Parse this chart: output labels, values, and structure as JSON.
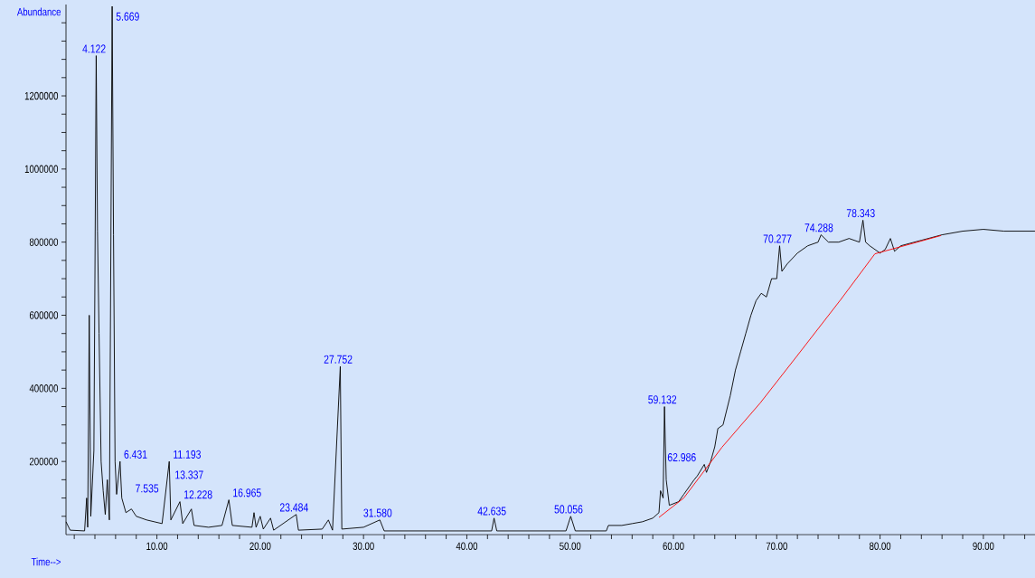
{
  "chart_data": {
    "type": "line",
    "xlabel": "Time-->",
    "ylabel": "Abundance",
    "xlim": [
      1.2,
      95
    ],
    "ylim": [
      0,
      1450000
    ],
    "xticks": [
      {
        "value": 2,
        "label": null
      },
      {
        "value": 4,
        "label": null
      },
      {
        "value": 6,
        "label": null
      },
      {
        "value": 8,
        "label": null
      },
      {
        "value": 10,
        "label": "10.00"
      },
      {
        "value": 12,
        "label": null
      },
      {
        "value": 14,
        "label": null
      },
      {
        "value": 16,
        "label": null
      },
      {
        "value": 18,
        "label": null
      },
      {
        "value": 20,
        "label": "20.00"
      },
      {
        "value": 22,
        "label": null
      },
      {
        "value": 24,
        "label": null
      },
      {
        "value": 26,
        "label": null
      },
      {
        "value": 28,
        "label": null
      },
      {
        "value": 30,
        "label": "30.00"
      },
      {
        "value": 32,
        "label": null
      },
      {
        "value": 34,
        "label": null
      },
      {
        "value": 36,
        "label": null
      },
      {
        "value": 38,
        "label": null
      },
      {
        "value": 40,
        "label": "40.00"
      },
      {
        "value": 42,
        "label": null
      },
      {
        "value": 44,
        "label": null
      },
      {
        "value": 46,
        "label": null
      },
      {
        "value": 48,
        "label": null
      },
      {
        "value": 50,
        "label": "50.00"
      },
      {
        "value": 52,
        "label": null
      },
      {
        "value": 54,
        "label": null
      },
      {
        "value": 56,
        "label": null
      },
      {
        "value": 58,
        "label": null
      },
      {
        "value": 60,
        "label": "60.00"
      },
      {
        "value": 62,
        "label": null
      },
      {
        "value": 64,
        "label": null
      },
      {
        "value": 66,
        "label": null
      },
      {
        "value": 68,
        "label": null
      },
      {
        "value": 70,
        "label": "70.00"
      },
      {
        "value": 72,
        "label": null
      },
      {
        "value": 74,
        "label": null
      },
      {
        "value": 76,
        "label": null
      },
      {
        "value": 78,
        "label": null
      },
      {
        "value": 80,
        "label": "80.00"
      },
      {
        "value": 82,
        "label": null
      },
      {
        "value": 84,
        "label": null
      },
      {
        "value": 86,
        "label": null
      },
      {
        "value": 88,
        "label": null
      },
      {
        "value": 90,
        "label": "90.00"
      },
      {
        "value": 92,
        "label": null
      },
      {
        "value": 94,
        "label": null
      }
    ],
    "yticks": [
      {
        "value": 50000,
        "label": null
      },
      {
        "value": 100000,
        "label": null
      },
      {
        "value": 150000,
        "label": null
      },
      200000,
      {
        "value": 250000,
        "label": null
      },
      {
        "value": 300000,
        "label": null
      },
      {
        "value": 350000,
        "label": null
      },
      400000,
      {
        "value": 450000,
        "label": null
      },
      {
        "value": 500000,
        "label": null
      },
      {
        "value": 550000,
        "label": null
      },
      600000,
      {
        "value": 650000,
        "label": null
      },
      {
        "value": 700000,
        "label": null
      },
      {
        "value": 750000,
        "label": null
      },
      800000,
      {
        "value": 850000,
        "label": null
      },
      {
        "value": 900000,
        "label": null
      },
      {
        "value": 950000,
        "label": null
      },
      1000000,
      {
        "value": 1050000,
        "label": null
      },
      {
        "value": 1100000,
        "label": null
      },
      {
        "value": 1150000,
        "label": null
      },
      1200000,
      {
        "value": 1250000,
        "label": null
      },
      {
        "value": 1300000,
        "label": null
      },
      {
        "value": 1350000,
        "label": null
      },
      {
        "value": 1400000,
        "label": null
      }
    ],
    "series": [
      {
        "type": "line",
        "color": "#000000",
        "x": [
          1.2,
          1.6,
          3.0,
          3.2,
          3.3,
          3.45,
          3.6,
          3.9,
          4.0,
          4.122,
          4.25,
          4.4,
          4.6,
          4.8,
          5.0,
          5.2,
          5.4,
          5.669,
          5.8,
          5.95,
          6.1,
          6.431,
          6.6,
          7.0,
          7.535,
          8.0,
          9.0,
          10.5,
          11.193,
          11.35,
          12.228,
          12.5,
          13.337,
          13.6,
          15,
          16.3,
          16.965,
          17.3,
          19.2,
          19.4,
          19.6,
          20,
          20.3,
          21,
          21.3,
          23.484,
          23.7,
          26,
          26.6,
          27,
          27.752,
          27.9,
          30,
          31.58,
          32,
          35,
          42.4,
          42.635,
          42.9,
          49.6,
          50.056,
          50.5,
          53.5,
          53.7,
          55,
          56,
          57,
          58,
          58.6,
          58.75,
          59.0,
          59.132,
          59.3,
          59.6,
          60.5,
          61,
          62,
          62.3,
          62.986,
          63.2,
          63.6,
          64.0,
          64.3,
          64.8,
          65.5,
          66,
          66.5,
          67,
          67.5,
          68,
          68.5,
          69,
          69.5,
          70,
          70.277,
          70.5,
          71,
          72,
          73,
          74,
          74.288,
          75,
          76,
          77,
          78,
          78.343,
          78.6,
          79,
          80,
          80.5,
          81,
          81.4,
          82,
          84,
          86,
          88,
          90,
          92,
          95
        ],
        "values": [
          35000,
          12000,
          10000,
          100000,
          20000,
          600000,
          50000,
          230000,
          700000,
          1310000,
          830000,
          550000,
          200000,
          120000,
          55000,
          150000,
          40000,
          1445000,
          820000,
          200000,
          110000,
          200000,
          100000,
          60000,
          70000,
          50000,
          40000,
          30000,
          200000,
          40000,
          90000,
          30000,
          70000,
          25000,
          20000,
          25000,
          95000,
          25000,
          20000,
          60000,
          20000,
          50000,
          15000,
          45000,
          12000,
          55000,
          12000,
          15000,
          40000,
          12000,
          460000,
          15000,
          20000,
          40000,
          10000,
          10000,
          10000,
          45000,
          10000,
          10000,
          50000,
          10000,
          10000,
          25000,
          25000,
          30000,
          35000,
          45000,
          60000,
          120000,
          100000,
          350000,
          150000,
          80000,
          90000,
          110000,
          150000,
          160000,
          192000,
          170000,
          200000,
          240000,
          290000,
          300000,
          380000,
          450000,
          500000,
          550000,
          600000,
          640000,
          660000,
          650000,
          700000,
          700000,
          790000,
          720000,
          740000,
          770000,
          790000,
          800000,
          820000,
          800000,
          800000,
          810000,
          800000,
          860000,
          800000,
          790000,
          770000,
          780000,
          810000,
          775000,
          790000,
          805000,
          820000,
          830000,
          835000,
          830000,
          830000
        ]
      },
      {
        "type": "line",
        "color": "#ff0000",
        "x": [
          58.6,
          61,
          64.7,
          68.4,
          72,
          76.2,
          79.5,
          85.9
        ],
        "values": [
          47000,
          100000,
          239000,
          360000,
          490000,
          643000,
          768000,
          818000
        ]
      }
    ],
    "annotations": [
      {
        "text": "4.122",
        "x": 4.122,
        "y": 1310000
      },
      {
        "text": "5.669",
        "x": 5.669,
        "y": 1445000
      },
      {
        "text": "6.431",
        "x": 6.431,
        "y": 200000
      },
      {
        "text": "7.535",
        "x": 7.535,
        "y": 70000
      },
      {
        "text": "11.193",
        "x": 11.193,
        "y": 200000
      },
      {
        "text": "12.228",
        "x": 12.228,
        "y": 90000
      },
      {
        "text": "13.337",
        "x": 13.337,
        "y": 70000
      },
      {
        "text": "16.965",
        "x": 16.965,
        "y": 95000
      },
      {
        "text": "23.484",
        "x": 23.484,
        "y": 55000
      },
      {
        "text": "27.752",
        "x": 27.752,
        "y": 460000
      },
      {
        "text": "31.580",
        "x": 31.58,
        "y": 40000
      },
      {
        "text": "42.635",
        "x": 42.635,
        "y": 45000
      },
      {
        "text": "50.056",
        "x": 50.056,
        "y": 50000
      },
      {
        "text": "59.132",
        "x": 59.132,
        "y": 350000
      },
      {
        "text": "62.986",
        "x": 62.986,
        "y": 192000
      },
      {
        "text": "70.277",
        "x": 70.277,
        "y": 790000
      },
      {
        "text": "74.288",
        "x": 74.288,
        "y": 820000
      },
      {
        "text": "78.343",
        "x": 78.343,
        "y": 860000
      }
    ]
  }
}
